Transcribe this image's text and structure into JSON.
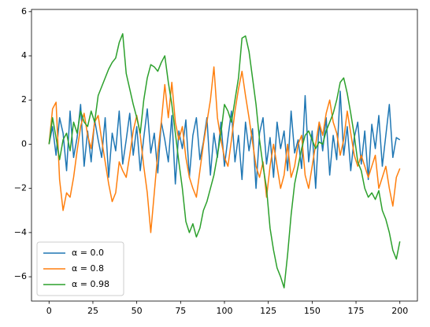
{
  "chart_data": {
    "type": "line",
    "x": [
      0,
      2,
      4,
      6,
      8,
      10,
      12,
      14,
      16,
      18,
      20,
      22,
      24,
      26,
      28,
      30,
      32,
      34,
      36,
      38,
      40,
      42,
      44,
      46,
      48,
      50,
      52,
      54,
      56,
      58,
      60,
      62,
      64,
      66,
      68,
      70,
      72,
      74,
      76,
      78,
      80,
      82,
      84,
      86,
      88,
      90,
      92,
      94,
      96,
      98,
      100,
      102,
      104,
      106,
      108,
      110,
      112,
      114,
      116,
      118,
      120,
      122,
      124,
      126,
      128,
      130,
      132,
      134,
      136,
      138,
      140,
      142,
      144,
      146,
      148,
      150,
      152,
      154,
      156,
      158,
      160,
      162,
      164,
      166,
      168,
      170,
      172,
      174,
      176,
      178,
      180,
      182,
      184,
      186,
      188,
      190,
      192,
      194,
      196,
      198,
      200
    ],
    "series": [
      {
        "name": "α = 0.0",
        "color": "#1f77b4",
        "values": [
          0,
          0.8,
          -0.5,
          1.2,
          0.5,
          -1.2,
          1.5,
          -0.6,
          0.3,
          1.8,
          -1,
          0.6,
          -0.8,
          1.1,
          0.2,
          -0.6,
          1.2,
          -1.5,
          0.5,
          -0.3,
          1.5,
          -0.9,
          0.2,
          1.4,
          -0.5,
          0.8,
          -1.2,
          0.3,
          1.6,
          -0.4,
          0.5,
          -1.3,
          1,
          0.2,
          -0.8,
          1.3,
          -1.8,
          0.6,
          -0.2,
          1.1,
          -1.5,
          0.4,
          1.2,
          -0.7,
          0.1,
          1.2,
          -1.4,
          0.5,
          -0.6,
          1,
          -1,
          0.3,
          1.5,
          -0.8,
          0.4,
          -1.6,
          1,
          -0.3,
          0.7,
          -2,
          0.5,
          1.2,
          -0.9,
          0.3,
          -1.5,
          1,
          -0.2,
          0.6,
          -1.2,
          1.5,
          -0.4,
          0.2,
          -1.1,
          2.2,
          -0.8,
          0.6,
          -2,
          1,
          -0.3,
          1.2,
          -1.4,
          0.4,
          -0.7,
          2.4,
          -0.5,
          0.8,
          -1.2,
          0.3,
          1,
          -0.9,
          0.6,
          -1.6,
          0.9,
          -0.2,
          1.3,
          -1,
          0.4,
          1.8,
          -0.6,
          0.3,
          0.2
        ]
      },
      {
        "name": "α = 0.8",
        "color": "#ff7f0e",
        "values": [
          0,
          1.6,
          1.9,
          -1.6,
          -3,
          -2.2,
          -2.4,
          -1.5,
          -0.3,
          0.8,
          1.4,
          0.4,
          -0.2,
          1,
          1.3,
          0.2,
          -0.8,
          -1.8,
          -2.6,
          -2.2,
          -0.8,
          -1.2,
          -1.5,
          -0.5,
          0.6,
          1.3,
          0.4,
          -1,
          -2.2,
          -4,
          -2.2,
          -0.4,
          1,
          2.7,
          1.2,
          2.8,
          1,
          0.2,
          0.8,
          -0.6,
          -1.5,
          -2,
          -2.4,
          -1.2,
          0,
          1,
          2,
          3.5,
          1.2,
          0.2,
          -0.6,
          -1,
          0.2,
          1.5,
          2.5,
          3.3,
          2.2,
          1.2,
          0.1,
          -1,
          -1.5,
          -0.8,
          -2.4,
          -1,
          0,
          -1,
          -2,
          -1.4,
          0,
          -1.5,
          -1,
          0,
          0.4,
          -1.4,
          -2,
          -1,
          0,
          1,
          0.4,
          1.4,
          2,
          1,
          0.5,
          -0.5,
          0.2,
          1.5,
          0.5,
          -0.5,
          -1,
          -0.5,
          -1,
          -1.5,
          -1,
          -0.5,
          -2,
          -1.5,
          -1,
          -2,
          -2.8,
          -1.5,
          -1.1
        ]
      },
      {
        "name": "α = 0.98",
        "color": "#2ca02c",
        "values": [
          0,
          1.2,
          0.3,
          -0.7,
          0.2,
          0.5,
          -0.3,
          1,
          0.5,
          1.5,
          1,
          0.8,
          1.5,
          1,
          2.2,
          2.6,
          3,
          3.4,
          3.7,
          3.9,
          4.6,
          5,
          3.2,
          2.5,
          1.8,
          1.2,
          0.5,
          2,
          3,
          3.6,
          3.5,
          3.3,
          3.7,
          4,
          2.8,
          1.8,
          0.5,
          -0.8,
          -2,
          -3.5,
          -4,
          -3.6,
          -4.2,
          -3.8,
          -3,
          -2.6,
          -2,
          -1.4,
          -0.5,
          0.5,
          1.8,
          1.5,
          1,
          2,
          3,
          4.8,
          4.9,
          4.2,
          3,
          1.8,
          0.2,
          -1,
          -2,
          -3.8,
          -4.8,
          -5.6,
          -6,
          -6.5,
          -5,
          -3.2,
          -1.8,
          -1,
          -0.2,
          0.4,
          0.6,
          0.2,
          -0.2,
          0.1,
          0,
          0.6,
          1,
          1.4,
          2,
          2.8,
          3,
          2.3,
          1.4,
          0.4,
          -0.8,
          -1.2,
          -2,
          -2.4,
          -2.2,
          -2.5,
          -2.1,
          -3,
          -3.4,
          -4,
          -4.8,
          -5.2,
          -4.4
        ]
      }
    ],
    "xlim": [
      -10,
      210
    ],
    "ylim": [
      -7.1,
      6.1
    ],
    "xticks": [
      0,
      25,
      50,
      75,
      100,
      125,
      150,
      175,
      200
    ],
    "yticks": [
      {
        "value": -6,
        "label": "−6"
      },
      {
        "value": -4,
        "label": "−4"
      },
      {
        "value": -2,
        "label": "−2"
      },
      0,
      2,
      4,
      6
    ],
    "grid": false,
    "legend": "lower left"
  }
}
